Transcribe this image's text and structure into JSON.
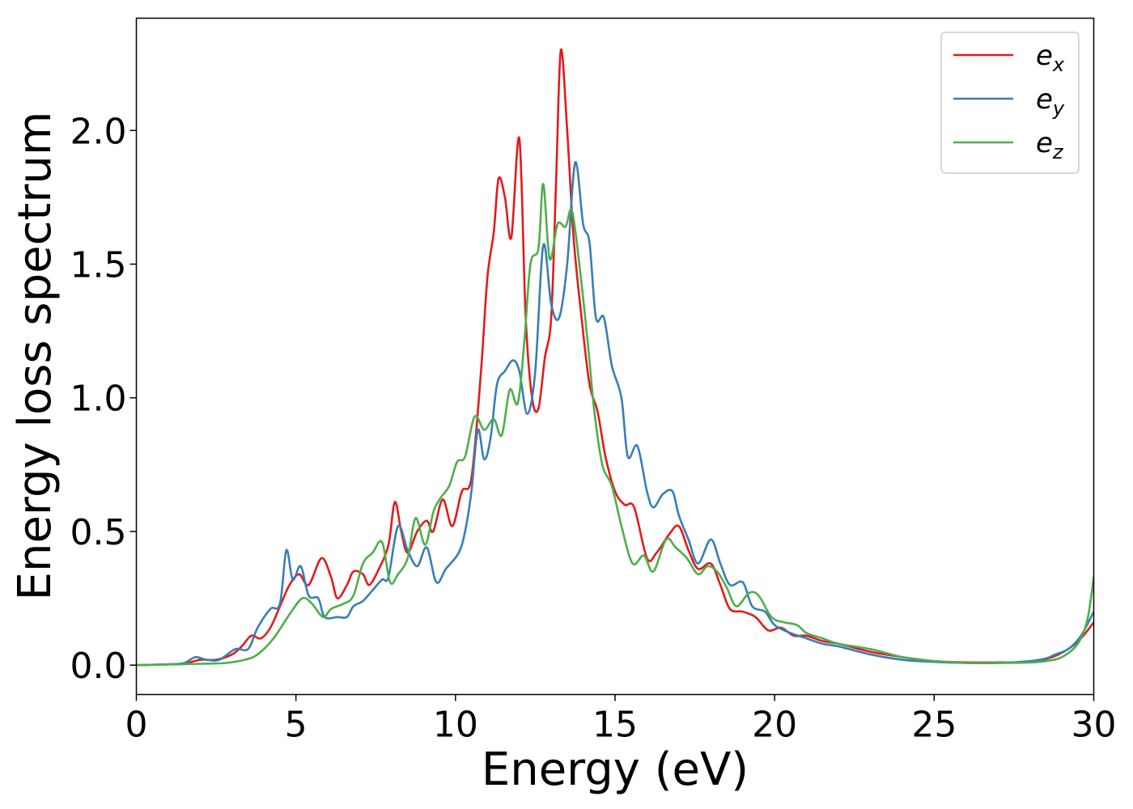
{
  "chart_data": {
    "type": "line",
    "title": "",
    "xlabel": "Energy (eV)",
    "ylabel": "Energy loss spectrum",
    "xlim": [
      0,
      30
    ],
    "ylim": [
      -0.11,
      2.42
    ],
    "xticks": [
      0,
      5,
      10,
      15,
      20,
      25,
      30
    ],
    "xtick_labels": [
      "0",
      "5",
      "10",
      "15",
      "20",
      "25",
      "30"
    ],
    "yticks": [
      0.0,
      0.5,
      1.0,
      1.5,
      2.0
    ],
    "ytick_labels": [
      "0.0",
      "0.5",
      "1.0",
      "1.5",
      "2.0"
    ],
    "grid": false,
    "legend_position": "top-right",
    "series": [
      {
        "name": "e_x",
        "legend_base": "e",
        "legend_sub": "x",
        "color": "#e41a1c",
        "points": [
          [
            0,
            0
          ],
          [
            1,
            0.003
          ],
          [
            1.5,
            0.005
          ],
          [
            2,
            0.02
          ],
          [
            2.5,
            0.02
          ],
          [
            3,
            0.04
          ],
          [
            3.3,
            0.07
          ],
          [
            3.6,
            0.11
          ],
          [
            3.9,
            0.1
          ],
          [
            4.2,
            0.14
          ],
          [
            4.5,
            0.22
          ],
          [
            4.8,
            0.3
          ],
          [
            5.1,
            0.34
          ],
          [
            5.4,
            0.3
          ],
          [
            5.8,
            0.4
          ],
          [
            6.1,
            0.33
          ],
          [
            6.3,
            0.25
          ],
          [
            6.6,
            0.3
          ],
          [
            6.8,
            0.35
          ],
          [
            7.1,
            0.34
          ],
          [
            7.3,
            0.3
          ],
          [
            7.6,
            0.36
          ],
          [
            7.9,
            0.45
          ],
          [
            8.1,
            0.61
          ],
          [
            8.3,
            0.5
          ],
          [
            8.5,
            0.42
          ],
          [
            8.8,
            0.5
          ],
          [
            9.1,
            0.54
          ],
          [
            9.3,
            0.5
          ],
          [
            9.6,
            0.62
          ],
          [
            9.9,
            0.52
          ],
          [
            10.2,
            0.65
          ],
          [
            10.5,
            0.7
          ],
          [
            10.8,
            1.1
          ],
          [
            11,
            1.45
          ],
          [
            11.2,
            1.62
          ],
          [
            11.35,
            1.82
          ],
          [
            11.55,
            1.75
          ],
          [
            11.75,
            1.6
          ],
          [
            12,
            1.97
          ],
          [
            12.2,
            1.3
          ],
          [
            12.4,
            1.0
          ],
          [
            12.6,
            0.96
          ],
          [
            12.8,
            1.15
          ],
          [
            13.0,
            1.3
          ],
          [
            13.15,
            1.8
          ],
          [
            13.3,
            2.3
          ],
          [
            13.5,
            2.0
          ],
          [
            13.7,
            1.6
          ],
          [
            13.95,
            1.3
          ],
          [
            14.2,
            1.05
          ],
          [
            14.45,
            0.95
          ],
          [
            14.7,
            0.78
          ],
          [
            15,
            0.65
          ],
          [
            15.3,
            0.6
          ],
          [
            15.6,
            0.59
          ],
          [
            16,
            0.4
          ],
          [
            16.3,
            0.42
          ],
          [
            16.7,
            0.49
          ],
          [
            17,
            0.52
          ],
          [
            17.3,
            0.43
          ],
          [
            17.6,
            0.36
          ],
          [
            18,
            0.38
          ],
          [
            18.3,
            0.3
          ],
          [
            18.6,
            0.21
          ],
          [
            19,
            0.2
          ],
          [
            19.4,
            0.18
          ],
          [
            19.8,
            0.13
          ],
          [
            20.2,
            0.14
          ],
          [
            20.6,
            0.11
          ],
          [
            21,
            0.11
          ],
          [
            21.5,
            0.09
          ],
          [
            22,
            0.08
          ],
          [
            23,
            0.05
          ],
          [
            24,
            0.03
          ],
          [
            25,
            0.015
          ],
          [
            26,
            0.01
          ],
          [
            27,
            0.01
          ],
          [
            28,
            0.012
          ],
          [
            28.7,
            0.03
          ],
          [
            29.2,
            0.06
          ],
          [
            29.6,
            0.1
          ],
          [
            30,
            0.16
          ]
        ]
      },
      {
        "name": "e_y",
        "legend_base": "e",
        "legend_sub": "y",
        "color": "#377eb8",
        "points": [
          [
            0,
            0
          ],
          [
            1,
            0.003
          ],
          [
            1.5,
            0.008
          ],
          [
            1.85,
            0.03
          ],
          [
            2.2,
            0.02
          ],
          [
            2.6,
            0.02
          ],
          [
            3.1,
            0.06
          ],
          [
            3.5,
            0.06
          ],
          [
            3.8,
            0.14
          ],
          [
            4.2,
            0.21
          ],
          [
            4.5,
            0.23
          ],
          [
            4.7,
            0.43
          ],
          [
            4.9,
            0.32
          ],
          [
            5.15,
            0.37
          ],
          [
            5.4,
            0.26
          ],
          [
            5.7,
            0.25
          ],
          [
            5.9,
            0.18
          ],
          [
            6.3,
            0.18
          ],
          [
            6.6,
            0.18
          ],
          [
            6.8,
            0.22
          ],
          [
            7.1,
            0.24
          ],
          [
            7.4,
            0.28
          ],
          [
            7.7,
            0.32
          ],
          [
            7.9,
            0.33
          ],
          [
            8.2,
            0.52
          ],
          [
            8.5,
            0.43
          ],
          [
            8.8,
            0.37
          ],
          [
            9.1,
            0.44
          ],
          [
            9.4,
            0.31
          ],
          [
            9.7,
            0.36
          ],
          [
            10.1,
            0.42
          ],
          [
            10.3,
            0.5
          ],
          [
            10.5,
            0.65
          ],
          [
            10.7,
            0.88
          ],
          [
            10.9,
            0.77
          ],
          [
            11.1,
            0.85
          ],
          [
            11.3,
            1.05
          ],
          [
            11.55,
            1.1
          ],
          [
            11.8,
            1.14
          ],
          [
            12,
            1.1
          ],
          [
            12.25,
            0.94
          ],
          [
            12.5,
            1.1
          ],
          [
            12.75,
            1.57
          ],
          [
            13,
            1.35
          ],
          [
            13.25,
            1.3
          ],
          [
            13.5,
            1.5
          ],
          [
            13.75,
            1.88
          ],
          [
            14,
            1.65
          ],
          [
            14.2,
            1.58
          ],
          [
            14.4,
            1.3
          ],
          [
            14.65,
            1.3
          ],
          [
            14.9,
            1.12
          ],
          [
            15.2,
            1.0
          ],
          [
            15.4,
            0.78
          ],
          [
            15.7,
            0.82
          ],
          [
            16,
            0.65
          ],
          [
            16.2,
            0.59
          ],
          [
            16.5,
            0.64
          ],
          [
            16.8,
            0.65
          ],
          [
            17,
            0.56
          ],
          [
            17.3,
            0.47
          ],
          [
            17.6,
            0.38
          ],
          [
            18,
            0.47
          ],
          [
            18.3,
            0.38
          ],
          [
            18.6,
            0.3
          ],
          [
            19,
            0.31
          ],
          [
            19.3,
            0.22
          ],
          [
            19.7,
            0.2
          ],
          [
            20,
            0.15
          ],
          [
            20.5,
            0.12
          ],
          [
            21,
            0.1
          ],
          [
            21.5,
            0.08
          ],
          [
            22,
            0.07
          ],
          [
            23,
            0.04
          ],
          [
            24,
            0.02
          ],
          [
            25,
            0.012
          ],
          [
            26,
            0.008
          ],
          [
            27,
            0.008
          ],
          [
            28,
            0.015
          ],
          [
            28.5,
            0.025
          ],
          [
            28.8,
            0.04
          ],
          [
            29.2,
            0.06
          ],
          [
            29.6,
            0.11
          ],
          [
            30,
            0.2
          ]
        ]
      },
      {
        "name": "e_z",
        "legend_base": "e",
        "legend_sub": "z",
        "color": "#4daf4a",
        "points": [
          [
            0,
            0
          ],
          [
            1,
            0.002
          ],
          [
            2,
            0.005
          ],
          [
            2.8,
            0.008
          ],
          [
            3.4,
            0.02
          ],
          [
            3.8,
            0.04
          ],
          [
            4.3,
            0.1
          ],
          [
            4.8,
            0.19
          ],
          [
            5.2,
            0.25
          ],
          [
            5.5,
            0.23
          ],
          [
            5.85,
            0.18
          ],
          [
            6.1,
            0.21
          ],
          [
            6.5,
            0.23
          ],
          [
            6.8,
            0.26
          ],
          [
            7.1,
            0.38
          ],
          [
            7.4,
            0.42
          ],
          [
            7.7,
            0.46
          ],
          [
            7.95,
            0.31
          ],
          [
            8.2,
            0.34
          ],
          [
            8.5,
            0.4
          ],
          [
            8.75,
            0.55
          ],
          [
            9.05,
            0.45
          ],
          [
            9.3,
            0.57
          ],
          [
            9.5,
            0.62
          ],
          [
            9.8,
            0.67
          ],
          [
            10.05,
            0.76
          ],
          [
            10.3,
            0.78
          ],
          [
            10.6,
            0.93
          ],
          [
            10.9,
            0.88
          ],
          [
            11.2,
            0.92
          ],
          [
            11.45,
            0.86
          ],
          [
            11.7,
            1.03
          ],
          [
            11.95,
            0.98
          ],
          [
            12.15,
            1.2
          ],
          [
            12.35,
            1.5
          ],
          [
            12.6,
            1.56
          ],
          [
            12.75,
            1.8
          ],
          [
            12.95,
            1.52
          ],
          [
            13.2,
            1.65
          ],
          [
            13.45,
            1.64
          ],
          [
            13.65,
            1.7
          ],
          [
            13.9,
            1.48
          ],
          [
            14.15,
            1.2
          ],
          [
            14.35,
            0.95
          ],
          [
            14.6,
            0.75
          ],
          [
            14.9,
            0.67
          ],
          [
            15.2,
            0.52
          ],
          [
            15.55,
            0.38
          ],
          [
            15.9,
            0.41
          ],
          [
            16.2,
            0.35
          ],
          [
            16.6,
            0.47
          ],
          [
            16.9,
            0.44
          ],
          [
            17.25,
            0.4
          ],
          [
            17.6,
            0.34
          ],
          [
            17.9,
            0.37
          ],
          [
            18.2,
            0.35
          ],
          [
            18.5,
            0.29
          ],
          [
            18.8,
            0.22
          ],
          [
            19.2,
            0.27
          ],
          [
            19.5,
            0.26
          ],
          [
            19.9,
            0.18
          ],
          [
            20.3,
            0.16
          ],
          [
            20.7,
            0.15
          ],
          [
            21,
            0.12
          ],
          [
            21.5,
            0.1
          ],
          [
            22,
            0.08
          ],
          [
            23,
            0.06
          ],
          [
            24,
            0.03
          ],
          [
            25,
            0.015
          ],
          [
            26,
            0.008
          ],
          [
            27,
            0.008
          ],
          [
            28,
            0.01
          ],
          [
            28.5,
            0.015
          ],
          [
            29,
            0.03
          ],
          [
            29.5,
            0.08
          ],
          [
            29.8,
            0.17
          ],
          [
            30,
            0.33
          ]
        ]
      }
    ]
  }
}
